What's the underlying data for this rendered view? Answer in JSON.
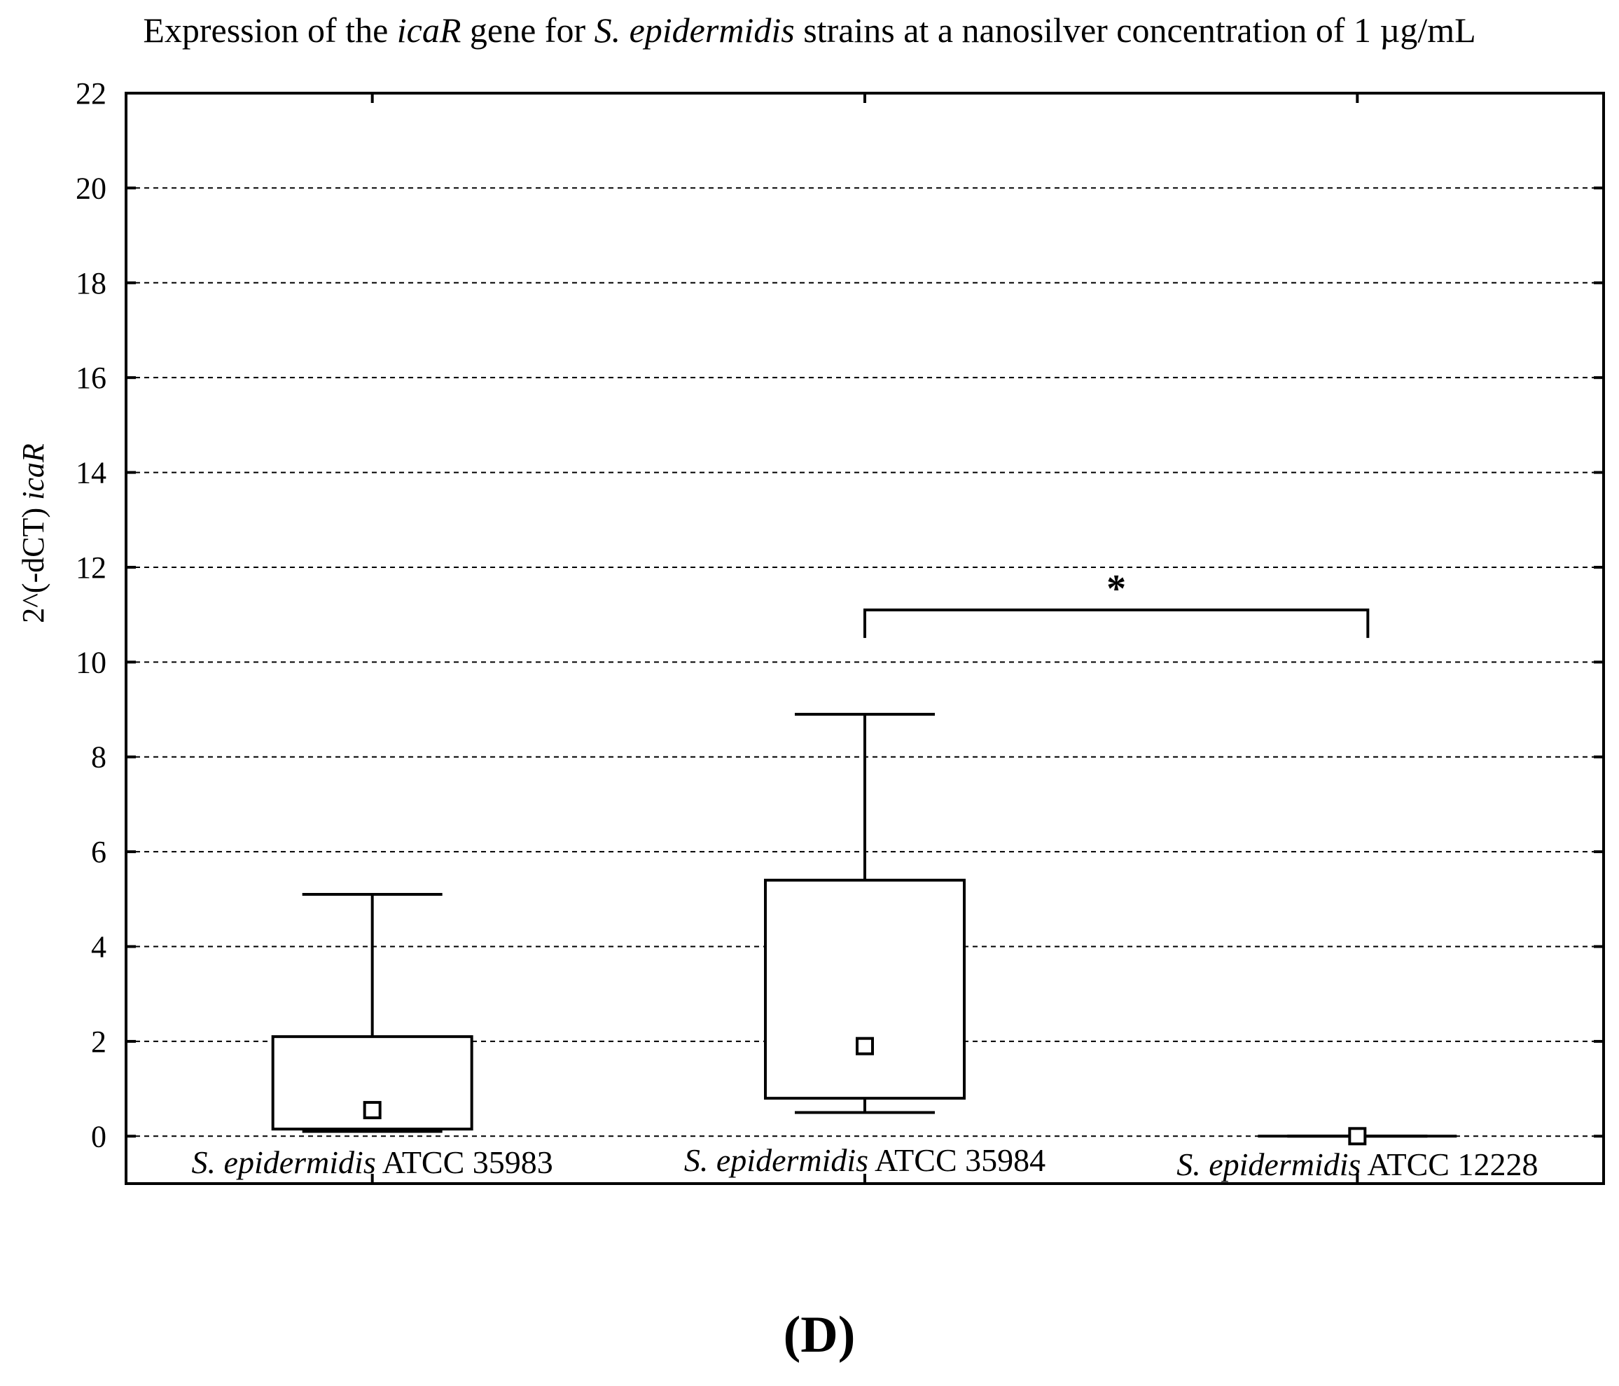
{
  "chart_data": {
    "type": "box",
    "title": {
      "parts": [
        {
          "text": "Expression of the ",
          "italic": false
        },
        {
          "text": "icaR",
          "italic": true
        },
        {
          "text": " gene for ",
          "italic": false
        },
        {
          "text": "S. epidermidis",
          "italic": true
        },
        {
          "text": "  strains at a nanosilver concentration of 1 µg/mL",
          "italic": false
        }
      ]
    },
    "ylabel": {
      "parts": [
        {
          "text": "2^(-dCT) ",
          "italic": false
        },
        {
          "text": "icaR",
          "italic": true
        }
      ]
    },
    "ylim": [
      -1,
      22
    ],
    "yticks": [
      0,
      2,
      4,
      6,
      8,
      10,
      12,
      14,
      16,
      18,
      20,
      22
    ],
    "grid": true,
    "categories": [
      {
        "species": "S. epidermidis",
        "strain": " ATCC 35983"
      },
      {
        "species": "S. epidermidis",
        "strain": " ATCC 35984"
      },
      {
        "species": "S. epidermidis",
        "strain": " ATCC 12228"
      }
    ],
    "series": [
      {
        "whisker_low": 0.1,
        "q1": 0.15,
        "q3": 2.1,
        "whisker_high": 5.1,
        "mean": 0.55
      },
      {
        "whisker_low": 0.5,
        "q1": 0.8,
        "q3": 5.4,
        "whisker_high": 8.9,
        "mean": 1.9
      },
      {
        "whisker_low": 0.0,
        "q1": 0.0,
        "q3": 0.0,
        "whisker_high": 0.0,
        "mean": 0.0
      }
    ],
    "significance": {
      "from": 1,
      "to": 2,
      "y": 11.1,
      "label": "*"
    },
    "panel_label": {
      "prefix": "(",
      "letter": "D",
      "suffix": ")"
    }
  }
}
